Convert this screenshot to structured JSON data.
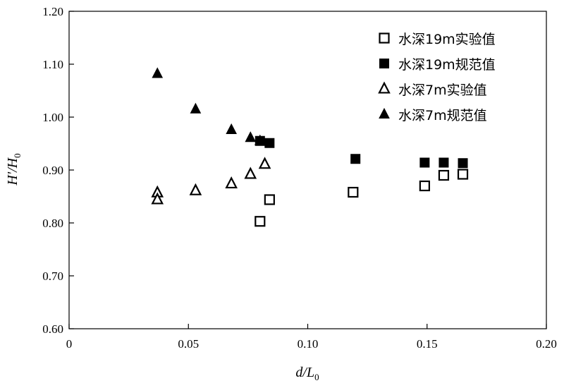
{
  "chart_data": {
    "type": "scatter",
    "title": "",
    "xlabel": {
      "main": "d/L",
      "sub": "0"
    },
    "ylabel": {
      "main": "H'/H",
      "sub": "0"
    },
    "xlim": [
      0,
      0.2
    ],
    "ylim": [
      0.6,
      1.2
    ],
    "xticks": [
      "0",
      "0.05",
      "0.10",
      "0.15",
      "0.20"
    ],
    "yticks": [
      "0.60",
      "0.70",
      "0.80",
      "0.90",
      "1.00",
      "1.10",
      "1.20"
    ],
    "grid": false,
    "legend_position": "top-right",
    "series": [
      {
        "name": "水深19m实验值",
        "marker": "square-open",
        "points": [
          [
            0.08,
            0.803
          ],
          [
            0.084,
            0.844
          ],
          [
            0.119,
            0.858
          ],
          [
            0.149,
            0.87
          ],
          [
            0.157,
            0.89
          ],
          [
            0.165,
            0.892
          ]
        ]
      },
      {
        "name": "水深19m规范值",
        "marker": "square-filled",
        "points": [
          [
            0.08,
            0.955
          ],
          [
            0.084,
            0.951
          ],
          [
            0.12,
            0.921
          ],
          [
            0.149,
            0.914
          ],
          [
            0.157,
            0.914
          ],
          [
            0.165,
            0.913
          ]
        ]
      },
      {
        "name": "水深7m实验值",
        "marker": "triangle-open",
        "points": [
          [
            0.037,
            0.857
          ],
          [
            0.037,
            0.844
          ],
          [
            0.053,
            0.861
          ],
          [
            0.068,
            0.874
          ],
          [
            0.076,
            0.892
          ],
          [
            0.082,
            0.911
          ]
        ]
      },
      {
        "name": "水深7m规范值",
        "marker": "triangle-filled",
        "points": [
          [
            0.037,
            1.082
          ],
          [
            0.053,
            1.015
          ],
          [
            0.068,
            0.976
          ],
          [
            0.076,
            0.961
          ],
          [
            0.08,
            0.955
          ]
        ]
      }
    ]
  }
}
